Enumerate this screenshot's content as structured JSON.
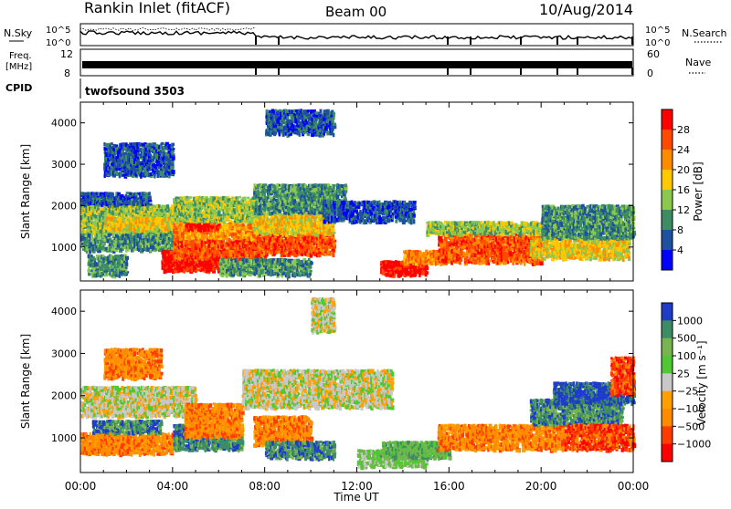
{
  "header": {
    "station": "Rankin Inlet (fitACF)",
    "beam": "Beam 00",
    "date": "10/Aug/2014"
  },
  "top_panels": {
    "nsky_label": "N.Sky",
    "nsky_ticks": [
      "10^5",
      "10^0"
    ],
    "nsearch_label": "N.Search",
    "nsearch_ticks": [
      "10^5",
      "10^0"
    ],
    "freq_label_1": "Freq.",
    "freq_label_2": "[MHz]",
    "freq_ticks": [
      "12",
      "8"
    ],
    "nave_label": "Nave",
    "nave_ticks": [
      "60",
      "0"
    ],
    "cpid_label": "CPID",
    "cpid_value": "twofsound 3503"
  },
  "chart_data": [
    {
      "type": "heatmap",
      "name": "power-panel",
      "ylabel": "Slant Range [km]",
      "ylim": [
        180,
        4500
      ],
      "yticks": [
        1000,
        2000,
        3000,
        4000
      ],
      "xlim": [
        0,
        24
      ],
      "xtick_labels": [
        "00:00",
        "04:00",
        "08:00",
        "12:00",
        "16:00",
        "20:00",
        "00:00"
      ],
      "colorbar": {
        "label": "Power [dB]",
        "ticks": [
          "28",
          "24",
          "20",
          "16",
          "12",
          "8",
          "4"
        ],
        "colors": [
          "#ff0000",
          "#ff4a00",
          "#ff8c00",
          "#ffc800",
          "#8cc850",
          "#3c8c64",
          "#1e50a0",
          "#0000ff"
        ]
      },
      "regions": [
        {
          "t0": 0.0,
          "t1": 4.0,
          "r0": 1300,
          "r1": 2000,
          "level": 4
        },
        {
          "t0": 0.0,
          "t1": 3.0,
          "r0": 2000,
          "r1": 2300,
          "level": 6
        },
        {
          "t0": 0.0,
          "t1": 4.0,
          "r0": 900,
          "r1": 1300,
          "level": 5
        },
        {
          "t0": 1.0,
          "t1": 4.0,
          "r0": 1400,
          "r1": 1700,
          "level": 3
        },
        {
          "t0": 0.3,
          "t1": 2.0,
          "r0": 300,
          "r1": 800,
          "level": 5
        },
        {
          "t0": 3.5,
          "t1": 7.0,
          "r0": 400,
          "r1": 900,
          "level": 0
        },
        {
          "t0": 4.0,
          "t1": 8.0,
          "r0": 700,
          "r1": 1200,
          "level": 1
        },
        {
          "t0": 4.0,
          "t1": 7.5,
          "r0": 1200,
          "r1": 1600,
          "level": 2
        },
        {
          "t0": 4.0,
          "t1": 7.5,
          "r0": 1600,
          "r1": 2200,
          "level": 4
        },
        {
          "t0": 7.5,
          "t1": 11.0,
          "r0": 800,
          "r1": 1300,
          "level": 1
        },
        {
          "t0": 7.5,
          "t1": 11.0,
          "r0": 1300,
          "r1": 1800,
          "level": 3
        },
        {
          "t0": 7.5,
          "t1": 11.5,
          "r0": 1800,
          "r1": 2500,
          "level": 5
        },
        {
          "t0": 6.0,
          "t1": 10.0,
          "r0": 300,
          "r1": 700,
          "level": 5
        },
        {
          "t0": 10.5,
          "t1": 14.5,
          "r0": 1600,
          "r1": 2100,
          "level": 6
        },
        {
          "t0": 13.0,
          "t1": 15.0,
          "r0": 300,
          "r1": 650,
          "level": 0
        },
        {
          "t0": 14.0,
          "t1": 16.0,
          "r0": 600,
          "r1": 900,
          "level": 2
        },
        {
          "t0": 15.5,
          "t1": 20.0,
          "r0": 600,
          "r1": 1300,
          "level": 1
        },
        {
          "t0": 15.0,
          "t1": 21.0,
          "r0": 1300,
          "r1": 1600,
          "level": 4
        },
        {
          "t0": 19.5,
          "t1": 23.8,
          "r0": 700,
          "r1": 1200,
          "level": 3
        },
        {
          "t0": 20.0,
          "t1": 24.0,
          "r0": 1200,
          "r1": 2000,
          "level": 5
        },
        {
          "t0": 1.0,
          "t1": 4.0,
          "r0": 2700,
          "r1": 3500,
          "level": 6
        },
        {
          "t0": 8.0,
          "t1": 11.0,
          "r0": 3700,
          "r1": 4300,
          "level": 6
        },
        {
          "t0": 4.5,
          "t1": 6.0,
          "r0": 1400,
          "r1": 1550,
          "level": 0
        }
      ]
    },
    {
      "type": "heatmap",
      "name": "velocity-panel",
      "ylabel": "Slant Range [km]",
      "ylim": [
        180,
        4500
      ],
      "yticks": [
        1000,
        2000,
        3000,
        4000
      ],
      "xlim": [
        0,
        24
      ],
      "xtick_labels": [
        "00:00",
        "04:00",
        "08:00",
        "12:00",
        "16:00",
        "20:00",
        "00:00"
      ],
      "xlabel": "Time UT",
      "colorbar": {
        "label": "Velocity [m s⁻¹]",
        "ticks": [
          "1000",
          "500",
          "100",
          "25",
          "−25",
          "−100",
          "−500",
          "−1000"
        ],
        "colors": [
          "#1e3cc8",
          "#3c8c64",
          "#78b450",
          "#50c832",
          "#c8c8c8",
          "#ffa000",
          "#ff8c00",
          "#ff3c00",
          "#ff0000"
        ]
      },
      "regions": [
        {
          "t0": 0.0,
          "t1": 5.0,
          "r0": 1500,
          "r1": 2200,
          "level": 4
        },
        {
          "t0": 0.0,
          "t1": 4.0,
          "r0": 600,
          "r1": 1100,
          "level": 6
        },
        {
          "t0": 0.5,
          "t1": 3.5,
          "r0": 1100,
          "r1": 1400,
          "level": 1
        },
        {
          "t0": 4.0,
          "t1": 7.0,
          "r0": 700,
          "r1": 1300,
          "level": 1
        },
        {
          "t0": 4.5,
          "t1": 7.0,
          "r0": 1000,
          "r1": 1800,
          "level": 6
        },
        {
          "t0": 7.0,
          "t1": 13.5,
          "r0": 1700,
          "r1": 2600,
          "level": 4
        },
        {
          "t0": 7.5,
          "t1": 10.0,
          "r0": 800,
          "r1": 1500,
          "level": 6
        },
        {
          "t0": 8.0,
          "t1": 11.0,
          "r0": 500,
          "r1": 900,
          "level": 1
        },
        {
          "t0": 12.0,
          "t1": 15.0,
          "r0": 300,
          "r1": 700,
          "level": 3
        },
        {
          "t0": 13.0,
          "t1": 16.0,
          "r0": 500,
          "r1": 900,
          "level": 2
        },
        {
          "t0": 15.5,
          "t1": 21.0,
          "r0": 700,
          "r1": 1300,
          "level": 6
        },
        {
          "t0": 19.5,
          "t1": 23.5,
          "r0": 1300,
          "r1": 1900,
          "level": 1
        },
        {
          "t0": 20.5,
          "t1": 24.0,
          "r0": 1800,
          "r1": 2300,
          "level": 0
        },
        {
          "t0": 21.0,
          "t1": 24.0,
          "r0": 700,
          "r1": 1300,
          "level": 7
        },
        {
          "t0": 1.0,
          "t1": 3.5,
          "r0": 2400,
          "r1": 3100,
          "level": 6
        },
        {
          "t0": 10.0,
          "t1": 11.0,
          "r0": 3500,
          "r1": 4300,
          "level": 4
        },
        {
          "t0": 23.0,
          "t1": 24.0,
          "r0": 2000,
          "r1": 2900,
          "level": 7
        }
      ]
    }
  ]
}
